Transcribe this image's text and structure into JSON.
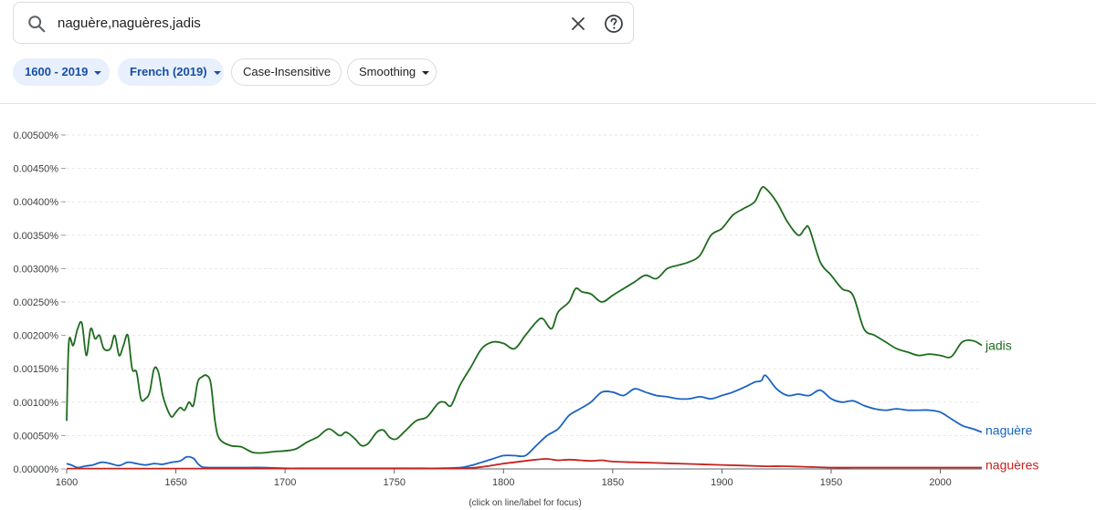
{
  "search": {
    "query": "naguère,naguères,jadis",
    "icon": "search-icon",
    "clear_icon": "close-icon",
    "help_icon": "help-circle-icon"
  },
  "filters": {
    "year_range": "1600 - 2019",
    "corpus": "French (2019)",
    "case": "Case-Insensitive",
    "smoothing": "Smoothing"
  },
  "colors": {
    "jadis": "#1e6b1e",
    "naguere": "#1a63c2",
    "nagueres": "#c5221f",
    "chip_active_bg": "#e8f0fe",
    "chip_active_text": "#174ea6"
  },
  "footnote": "(click on line/label for focus)",
  "chart_data": {
    "type": "line",
    "title": "",
    "xlabel": "",
    "ylabel": "",
    "xlim": [
      1600,
      2019
    ],
    "ylim": [
      0,
      0.005
    ],
    "xticks": [
      1600,
      1650,
      1700,
      1750,
      1800,
      1850,
      1900,
      1950,
      2000
    ],
    "xtick_labels": [
      "1600",
      "1650",
      "1700",
      "1750",
      "1800",
      "1850",
      "1900",
      "1950",
      "2000"
    ],
    "yticks": [
      0,
      0.0005,
      0.001,
      0.0015,
      0.002,
      0.0025,
      0.003,
      0.0035,
      0.004,
      0.0045,
      0.005
    ],
    "ytick_labels": [
      "0.00000%",
      "0.00050%",
      "0.00100%",
      "0.00150%",
      "0.00200%",
      "0.00250%",
      "0.00300%",
      "0.00350%",
      "0.00400%",
      "0.00450%",
      "0.00500%"
    ],
    "grid": "horizontal-dashed",
    "legend": "inline-line-end",
    "series": [
      {
        "name": "jadis",
        "color": "#1e6b1e",
        "x": [
          1600,
          1601,
          1603,
          1605,
          1607,
          1609,
          1611,
          1613,
          1615,
          1617,
          1620,
          1622,
          1624,
          1626,
          1628,
          1630,
          1632,
          1634,
          1636,
          1638,
          1640,
          1642,
          1644,
          1646,
          1648,
          1650,
          1652,
          1654,
          1656,
          1658,
          1660,
          1662,
          1664,
          1666,
          1668,
          1670,
          1675,
          1680,
          1685,
          1690,
          1695,
          1700,
          1705,
          1710,
          1715,
          1720,
          1725,
          1728,
          1732,
          1735,
          1738,
          1742,
          1745,
          1748,
          1751,
          1755,
          1760,
          1765,
          1770,
          1773,
          1776,
          1780,
          1785,
          1790,
          1795,
          1800,
          1805,
          1810,
          1815,
          1818,
          1822,
          1825,
          1830,
          1833,
          1836,
          1840,
          1845,
          1850,
          1855,
          1860,
          1865,
          1870,
          1875,
          1880,
          1885,
          1890,
          1895,
          1900,
          1905,
          1910,
          1915,
          1918,
          1920,
          1925,
          1930,
          1935,
          1938,
          1940,
          1945,
          1950,
          1955,
          1960,
          1965,
          1970,
          1975,
          1980,
          1985,
          1990,
          1995,
          2000,
          2005,
          2010,
          2015,
          2019
        ],
        "y": [
          0.00072,
          0.0019,
          0.00185,
          0.0021,
          0.00218,
          0.0017,
          0.0021,
          0.00195,
          0.002,
          0.0018,
          0.0018,
          0.002,
          0.0017,
          0.00185,
          0.002,
          0.0015,
          0.00145,
          0.00105,
          0.00105,
          0.00115,
          0.0015,
          0.00145,
          0.0011,
          0.0009,
          0.00078,
          0.00085,
          0.00092,
          0.00088,
          0.001,
          0.00095,
          0.0013,
          0.00138,
          0.0014,
          0.00128,
          0.0007,
          0.00045,
          0.00035,
          0.00033,
          0.00025,
          0.00024,
          0.00026,
          0.00027,
          0.0003,
          0.0004,
          0.00048,
          0.0006,
          0.0005,
          0.00055,
          0.00045,
          0.00035,
          0.00038,
          0.00055,
          0.00058,
          0.00047,
          0.00045,
          0.00057,
          0.00072,
          0.00078,
          0.00098,
          0.001,
          0.00095,
          0.00125,
          0.00152,
          0.0018,
          0.0019,
          0.00188,
          0.0018,
          0.002,
          0.0022,
          0.00225,
          0.0021,
          0.00235,
          0.0025,
          0.0027,
          0.00265,
          0.00262,
          0.0025,
          0.0026,
          0.0027,
          0.0028,
          0.0029,
          0.00285,
          0.003,
          0.00305,
          0.0031,
          0.0032,
          0.0035,
          0.0036,
          0.0038,
          0.0039,
          0.004,
          0.0042,
          0.0042,
          0.004,
          0.0037,
          0.0035,
          0.0036,
          0.0036,
          0.0031,
          0.0029,
          0.0027,
          0.0026,
          0.0021,
          0.002,
          0.0019,
          0.0018,
          0.00175,
          0.0017,
          0.00172,
          0.0017,
          0.00168,
          0.0019,
          0.00192,
          0.00185
        ]
      },
      {
        "name": "naguère",
        "color": "#1a63c2",
        "x": [
          1600,
          1602,
          1605,
          1608,
          1612,
          1616,
          1620,
          1624,
          1628,
          1632,
          1636,
          1640,
          1644,
          1648,
          1652,
          1655,
          1658,
          1660,
          1662,
          1665,
          1670,
          1680,
          1690,
          1700,
          1710,
          1720,
          1730,
          1740,
          1750,
          1760,
          1770,
          1780,
          1785,
          1790,
          1795,
          1800,
          1805,
          1810,
          1815,
          1820,
          1825,
          1830,
          1835,
          1840,
          1845,
          1850,
          1855,
          1860,
          1865,
          1870,
          1875,
          1880,
          1885,
          1890,
          1895,
          1900,
          1905,
          1910,
          1915,
          1918,
          1920,
          1925,
          1930,
          1935,
          1940,
          1945,
          1950,
          1955,
          1960,
          1965,
          1970,
          1975,
          1980,
          1985,
          1990,
          1995,
          2000,
          2005,
          2010,
          2015,
          2019
        ],
        "y": [
          8e-05,
          6e-05,
          2e-05,
          4e-05,
          6e-05,
          0.0001,
          8e-05,
          5e-05,
          0.0001,
          8e-05,
          6e-05,
          8e-05,
          7e-05,
          0.0001,
          0.00012,
          0.00018,
          0.00016,
          8e-05,
          3e-05,
          2e-05,
          2e-05,
          2e-05,
          2e-05,
          1e-05,
          1e-05,
          1e-05,
          1e-05,
          1e-05,
          1e-05,
          1e-05,
          1e-05,
          2e-05,
          5e-05,
          0.0001,
          0.00015,
          0.0002,
          0.0002,
          0.0002,
          0.00035,
          0.0005,
          0.0006,
          0.0008,
          0.0009,
          0.001,
          0.00115,
          0.00115,
          0.0011,
          0.0012,
          0.00115,
          0.0011,
          0.00108,
          0.00105,
          0.00105,
          0.00108,
          0.00105,
          0.0011,
          0.00115,
          0.00122,
          0.0013,
          0.00132,
          0.0014,
          0.0012,
          0.0011,
          0.00112,
          0.0011,
          0.00118,
          0.00105,
          0.001,
          0.00102,
          0.00095,
          0.0009,
          0.00088,
          0.0009,
          0.00088,
          0.00088,
          0.00088,
          0.00085,
          0.00075,
          0.00065,
          0.0006,
          0.00055
        ]
      },
      {
        "name": "naguères",
        "color": "#c5221f",
        "x": [
          1600,
          1650,
          1700,
          1750,
          1780,
          1790,
          1800,
          1805,
          1810,
          1815,
          1820,
          1825,
          1830,
          1835,
          1840,
          1845,
          1850,
          1860,
          1870,
          1880,
          1890,
          1900,
          1910,
          1920,
          1930,
          1940,
          1950,
          1960,
          1970,
          1980,
          1990,
          2000,
          2010,
          2019
        ],
        "y": [
          5e-06,
          5e-06,
          5e-06,
          5e-06,
          1e-05,
          3e-05,
          8e-05,
          0.0001,
          0.00012,
          0.00014,
          0.00015,
          0.00013,
          0.00014,
          0.00013,
          0.00012,
          0.00013,
          0.00011,
          0.0001,
          9e-05,
          8e-05,
          7e-05,
          6e-05,
          5e-05,
          4e-05,
          4e-05,
          3e-05,
          2e-05,
          2e-05,
          2e-05,
          2e-05,
          2e-05,
          2e-05,
          2e-05,
          2e-05
        ]
      }
    ]
  }
}
